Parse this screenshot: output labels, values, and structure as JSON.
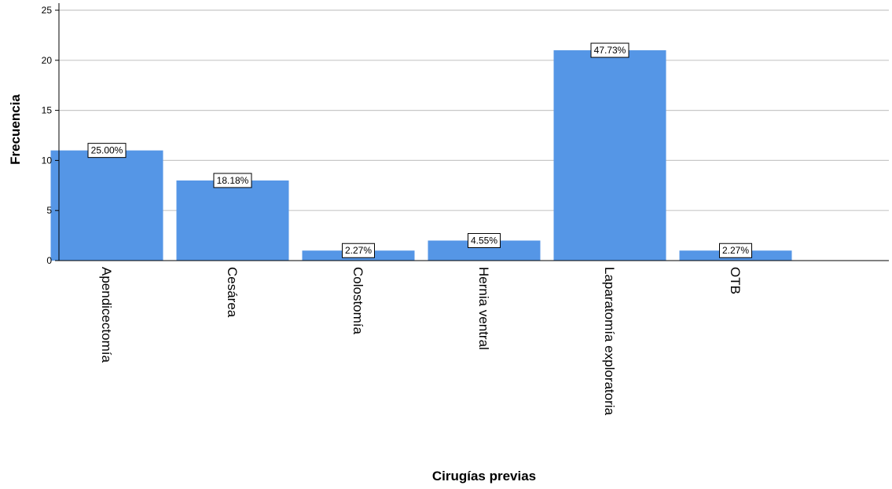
{
  "chart_data": {
    "type": "bar",
    "title": "",
    "xlabel": "Cirugías previas",
    "ylabel": "Frecuencia",
    "ylim": [
      0,
      25
    ],
    "yticks": [
      "0",
      "5",
      "10",
      "15",
      "20",
      "25"
    ],
    "grid": true,
    "categories": [
      "Apendicectomía",
      "Cesárea",
      "Colostomía",
      "Hernia ventral",
      "Laparatomía exploratoria",
      "OTB"
    ],
    "values": [
      11,
      8,
      1,
      2,
      21,
      1
    ],
    "data_labels": [
      "25.00%",
      "18.18%",
      "2.27%",
      "4.55%",
      "47.73%",
      "2.27%"
    ],
    "colors": {
      "bar": "#5596e6",
      "grid": "#c8c8c8",
      "axis": "#000000",
      "label_border": "#000000",
      "label_fill": "#ffffff"
    }
  }
}
